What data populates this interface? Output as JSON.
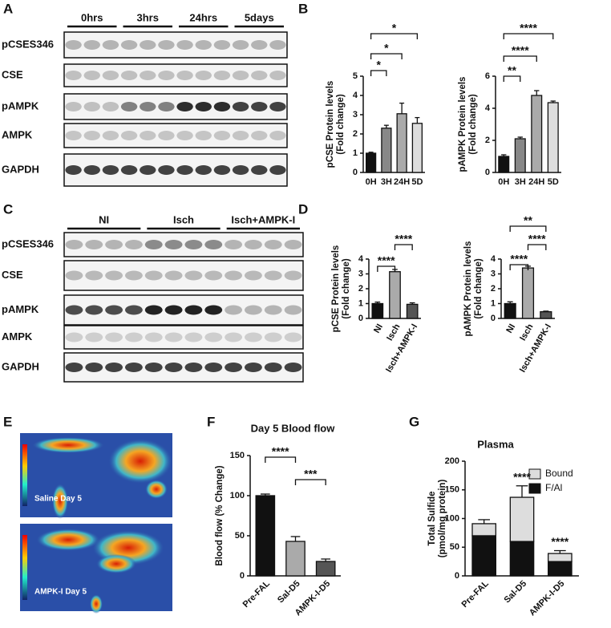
{
  "panel_letters": [
    "A",
    "B",
    "C",
    "D",
    "E",
    "F",
    "G"
  ],
  "blot_A": {
    "groups": [
      "0hrs",
      "3hrs",
      "24hrs",
      "5days"
    ],
    "rows": [
      "pCSES346",
      "CSE",
      "pAMPK",
      "AMPK",
      "GAPDH"
    ]
  },
  "blot_C": {
    "groups": [
      "NI",
      "Isch",
      "Isch+AMPK-I"
    ],
    "rows": [
      "pCSES346",
      "CSE",
      "pAMPK",
      "AMPK",
      "GAPDH"
    ]
  },
  "images_E": {
    "labels": [
      "Saline Day 5",
      "AMPK-I Day 5"
    ]
  },
  "chart_data": [
    {
      "type": "bar",
      "y_label": [
        "pCSE Protein levels",
        "(Fold change)"
      ],
      "categories": [
        "0H",
        "3H",
        "24H",
        "5D"
      ],
      "values": [
        1.0,
        2.3,
        3.05,
        2.55
      ],
      "errors": [
        0.05,
        0.15,
        0.55,
        0.3
      ],
      "colors": [
        "#111111",
        "#888888",
        "#aaaaaa",
        "#dddddd"
      ],
      "ylim": [
        0,
        5
      ],
      "yticks": [
        0,
        1,
        2,
        3,
        4,
        5
      ],
      "annotations": [
        "*",
        "*",
        "*"
      ]
    },
    {
      "type": "bar",
      "y_label": [
        "pAMPK Protein levels",
        "(Fold change)"
      ],
      "categories": [
        "0H",
        "3H",
        "24H",
        "5D"
      ],
      "values": [
        1.0,
        2.1,
        4.8,
        4.35
      ],
      "errors": [
        0.1,
        0.1,
        0.3,
        0.1
      ],
      "colors": [
        "#111111",
        "#888888",
        "#aaaaaa",
        "#dddddd"
      ],
      "ylim": [
        0,
        6
      ],
      "yticks": [
        0,
        2,
        4,
        6
      ],
      "annotations": [
        "**",
        "****",
        "****"
      ]
    },
    {
      "type": "bar",
      "y_label": [
        "pCSE Protein levels",
        "(Fold change)"
      ],
      "categories": [
        "NI",
        "Isch",
        "Isch+AMPK-I"
      ],
      "values": [
        1.0,
        3.15,
        0.95
      ],
      "errors": [
        0.1,
        0.15,
        0.1
      ],
      "colors": [
        "#111111",
        "#aaaaaa",
        "#555555"
      ],
      "ylim": [
        0,
        4
      ],
      "yticks": [
        0,
        1,
        2,
        3,
        4
      ],
      "annotations": [
        "****",
        "****"
      ]
    },
    {
      "type": "bar",
      "y_label": [
        "pAMPK Protein levels",
        "(Fold change)"
      ],
      "categories": [
        "NI",
        "Isch",
        "Isch+AMPK-I"
      ],
      "values": [
        1.0,
        3.4,
        0.45
      ],
      "errors": [
        0.12,
        0.12,
        0.04
      ],
      "colors": [
        "#111111",
        "#aaaaaa",
        "#555555"
      ],
      "ylim": [
        0,
        4
      ],
      "yticks": [
        0,
        1,
        2,
        3,
        4
      ],
      "annotations": [
        "****",
        "****",
        "**"
      ]
    },
    {
      "type": "bar",
      "title": "Day 5 Blood flow",
      "y_label": [
        "Blood flow (% Change)"
      ],
      "categories": [
        "Pre-FAL",
        "Sal-D5",
        "AMPK-I-D5"
      ],
      "values": [
        100,
        43,
        18
      ],
      "errors": [
        2,
        6,
        3
      ],
      "colors": [
        "#111111",
        "#aaaaaa",
        "#555555"
      ],
      "ylim": [
        0,
        150
      ],
      "yticks": [
        0,
        50,
        100,
        150
      ],
      "annotations": [
        "****",
        "***"
      ]
    },
    {
      "type": "stacked_bar",
      "title": "Plasma",
      "y_label": [
        "Total Sulfide",
        "(pmol/mg protein)"
      ],
      "categories": [
        "Pre-FAL",
        "Sal-D5",
        "AMPK-I-D5"
      ],
      "series": [
        {
          "name": "F/Al",
          "color": "#111111",
          "values": [
            70,
            60,
            25
          ],
          "errors": [
            10,
            10,
            5
          ]
        },
        {
          "name": "Bound",
          "color": "#dddddd",
          "values": [
            21,
            77,
            14
          ],
          "errors": [
            7,
            20,
            5
          ]
        }
      ],
      "ylim": [
        0,
        200
      ],
      "yticks": [
        0,
        50,
        100,
        150,
        200
      ],
      "legend": "upper right",
      "annotations": [
        "****",
        "****"
      ]
    }
  ]
}
